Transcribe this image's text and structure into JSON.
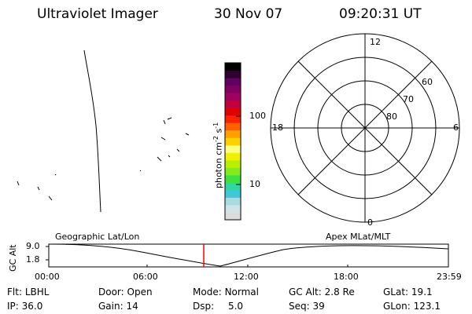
{
  "header": {
    "instrument": "Ultraviolet Imager",
    "date": "30 Nov 07",
    "time": "09:20:31 UT"
  },
  "colorbar": {
    "label_main": "photon cm",
    "label_exp1": "-2",
    "label_mid": "s",
    "label_exp2": "-1",
    "tick_high": "100",
    "tick_low": "10",
    "colors": [
      "#dcdcdc",
      "#d0e4e8",
      "#a8dce0",
      "#40c8d8",
      "#30d8a0",
      "#40e040",
      "#80ec20",
      "#b8f000",
      "#f0f000",
      "#ffff80",
      "#ffd000",
      "#ffa000",
      "#ff6000",
      "#ff2000",
      "#e00000",
      "#c00040",
      "#a00060",
      "#800060",
      "#600060",
      "#300030",
      "#000000"
    ]
  },
  "polar_plot": {
    "mlt_labels": {
      "top": "12",
      "left": "18",
      "right": "6",
      "bottom": "0"
    },
    "lat_labels": [
      "60",
      "70",
      "80"
    ]
  },
  "timeline": {
    "y_label": "GC Alt",
    "y_ticks": [
      "9.0",
      "1.8"
    ],
    "left_caption": "Geographic Lat/Lon",
    "right_caption": "Apex  MLat/MLT",
    "time_ticks": [
      "00:00",
      "06:00",
      "12:00",
      "18:00",
      "23:59"
    ],
    "current_marker_color": "#ff0000"
  },
  "status": {
    "rows": [
      [
        {
          "label": "Flt:",
          "value": "LBHL"
        },
        {
          "label": "Door:",
          "value": "Open"
        },
        {
          "label": "Mode:",
          "value": "Normal"
        },
        {
          "label": "GC Alt:",
          "value": "2.8 Re"
        },
        {
          "label": "GLat:",
          "value": "19.1"
        }
      ],
      [
        {
          "label": "IP:",
          "value": "36.0"
        },
        {
          "label": "Gain:",
          "value": "14"
        },
        {
          "label": "Dsp:",
          "value": "5.0"
        },
        {
          "label": "Seq:",
          "value": "39"
        },
        {
          "label": "GLon:",
          "value": "123.1"
        }
      ]
    ]
  }
}
